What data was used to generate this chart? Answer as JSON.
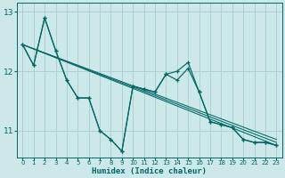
{
  "xlabel": "Humidex (Indice chaleur)",
  "background_color": "#cce8e8",
  "grid_color": "#aacccc",
  "line_color": "#006666",
  "xlim": [
    -0.5,
    23.5
  ],
  "ylim": [
    10.55,
    13.15
  ],
  "yticks": [
    11,
    12,
    13
  ],
  "xticks": [
    0,
    1,
    2,
    3,
    4,
    5,
    6,
    7,
    8,
    9,
    10,
    11,
    12,
    13,
    14,
    15,
    16,
    17,
    18,
    19,
    20,
    21,
    22,
    23
  ],
  "series1_x": [
    0,
    1,
    2,
    3,
    4,
    5,
    6,
    7,
    8,
    9,
    10,
    11,
    12,
    13,
    14,
    15,
    16,
    17,
    18,
    19,
    20,
    21,
    22,
    23
  ],
  "series1_y": [
    12.45,
    12.1,
    12.9,
    12.35,
    11.85,
    11.55,
    11.55,
    11.0,
    10.85,
    10.65,
    11.75,
    11.7,
    11.65,
    11.95,
    11.85,
    12.05,
    11.65,
    11.15,
    11.1,
    11.05,
    10.85,
    10.8,
    10.8,
    10.75
  ],
  "series2_x": [
    0,
    1,
    2,
    3,
    4,
    5,
    6,
    7,
    8,
    9,
    10,
    11,
    12,
    13,
    14,
    15,
    16,
    17,
    18,
    19,
    20,
    21,
    22,
    23
  ],
  "series2_y": [
    12.45,
    12.1,
    12.9,
    12.35,
    11.85,
    11.55,
    11.55,
    11.0,
    10.85,
    10.65,
    11.75,
    11.7,
    11.65,
    11.95,
    12.0,
    12.15,
    11.65,
    11.15,
    11.1,
    11.05,
    10.85,
    10.8,
    10.8,
    10.75
  ],
  "trend1_x": [
    0,
    23
  ],
  "trend1_y": [
    12.45,
    10.75
  ],
  "trend2_x": [
    0,
    23
  ],
  "trend2_y": [
    12.45,
    10.8
  ],
  "trend3_x": [
    0,
    23
  ],
  "trend3_y": [
    12.45,
    10.85
  ]
}
